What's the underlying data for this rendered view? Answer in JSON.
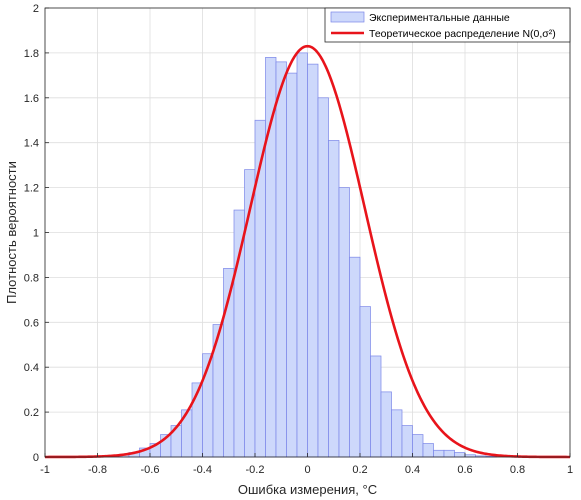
{
  "chart_data": {
    "type": "bar",
    "xlabel": "Ошибка измерения, °C",
    "ylabel": "Плотность вероятности",
    "xlim": [
      -1,
      1
    ],
    "ylim": [
      0,
      2
    ],
    "x_ticks": [
      "-1",
      "-0.8",
      "-0.6",
      "-0.4",
      "-0.2",
      "0",
      "0.2",
      "0.4",
      "0.6",
      "0.8",
      "1"
    ],
    "y_ticks": [
      "0",
      "0.2",
      "0.4",
      "0.6",
      "0.8",
      "1",
      "1.2",
      "1.4",
      "1.6",
      "1.8",
      "2"
    ],
    "grid": true,
    "legend_position": "top-right",
    "bin_width": 0.04,
    "histogram": {
      "name": "Экспериментальные данные",
      "color": "#cdd8fb",
      "edge_color": "#7b86e8",
      "bin_edges": [
        -0.76,
        -0.72,
        -0.68,
        -0.64,
        -0.6,
        -0.56,
        -0.52,
        -0.48,
        -0.44,
        -0.4,
        -0.36,
        -0.32,
        -0.28,
        -0.24,
        -0.2,
        -0.16,
        -0.12,
        -0.08,
        -0.04,
        0.0,
        0.04,
        0.08,
        0.12,
        0.16,
        0.2,
        0.24,
        0.28,
        0.32,
        0.36,
        0.4,
        0.44,
        0.48,
        0.52,
        0.56,
        0.6,
        0.64,
        0.68,
        0.72
      ],
      "values": [
        0.005,
        0.01,
        0.02,
        0.04,
        0.06,
        0.1,
        0.14,
        0.21,
        0.33,
        0.46,
        0.59,
        0.84,
        1.1,
        1.28,
        1.5,
        1.78,
        1.76,
        1.71,
        1.8,
        1.75,
        1.6,
        1.41,
        1.2,
        0.89,
        0.67,
        0.45,
        0.29,
        0.21,
        0.14,
        0.1,
        0.06,
        0.03,
        0.03,
        0.02,
        0.01,
        0.005,
        0.003
      ]
    },
    "curve": {
      "name": "Теоретическое распределение N(0,σ²)",
      "color": "#e8141b",
      "peak": 1.83,
      "mu": 0.0,
      "sigma": 0.218
    }
  }
}
